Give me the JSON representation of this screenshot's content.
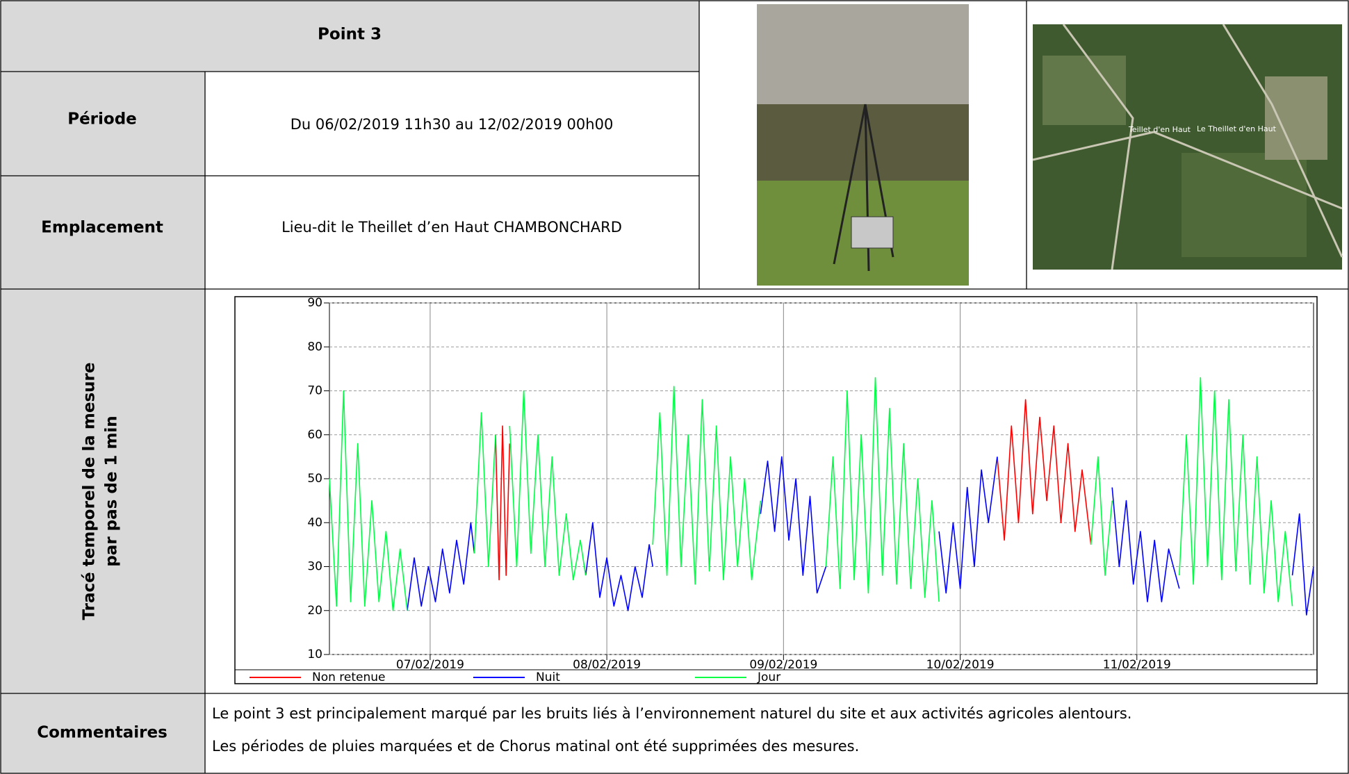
{
  "header": {
    "title": "Point 3"
  },
  "rows": [
    {
      "label": "Période",
      "value": "Du 06/02/2019 11h30 au 12/02/2019 00h00"
    },
    {
      "label": "Emplacement",
      "value": "Lieu-dit le Theillet d’en Haut CHAMBONCHARD"
    }
  ],
  "map_labels": [
    "Teillet d'en Haut",
    "Le Theillet d'en Haut"
  ],
  "chart_row_label": [
    "Tracé temporel de la mesure",
    "par pas de 1 min"
  ],
  "chart_data": {
    "type": "line",
    "xlim": [
      6.43,
      12
    ],
    "xticks": [
      {
        "value": 7,
        "label": "07/02/2019"
      },
      {
        "value": 8,
        "label": "08/02/2019"
      },
      {
        "value": 9,
        "label": "09/02/2019"
      },
      {
        "value": 10,
        "label": "10/02/2019"
      },
      {
        "value": 11,
        "label": "11/02/2019"
      }
    ],
    "ylim": [
      10,
      90
    ],
    "yticks": [
      10,
      20,
      30,
      40,
      50,
      60,
      70,
      80,
      90
    ],
    "grid": true,
    "series": [
      {
        "name": "Non retenue",
        "color": "#ff0000",
        "x": [
          7.37,
          7.39,
          7.41,
          7.43,
          7.45,
          null,
          10.21,
          10.25,
          10.29,
          10.33,
          10.37,
          10.41,
          10.45,
          10.49,
          10.53,
          10.57,
          10.61,
          10.65,
          10.69,
          10.74
        ],
        "values": [
          60,
          27,
          62,
          28,
          58,
          null,
          55,
          36,
          62,
          40,
          68,
          42,
          64,
          45,
          62,
          40,
          58,
          38,
          52,
          35
        ]
      },
      {
        "name": "Nuit",
        "color": "#0000ff",
        "x": [
          6.87,
          6.91,
          6.95,
          6.99,
          7.03,
          7.07,
          7.11,
          7.15,
          7.19,
          7.23,
          7.25,
          null,
          7.88,
          7.92,
          7.96,
          8.0,
          8.04,
          8.08,
          8.12,
          8.16,
          8.2,
          8.24,
          8.26,
          null,
          8.87,
          8.91,
          8.95,
          8.99,
          9.03,
          9.07,
          9.11,
          9.15,
          9.19,
          9.24,
          null,
          9.88,
          9.92,
          9.96,
          10.0,
          10.04,
          10.08,
          10.12,
          10.16,
          10.21,
          null,
          10.86,
          10.9,
          10.94,
          10.98,
          11.02,
          11.06,
          11.1,
          11.14,
          11.18,
          11.24,
          null,
          11.88,
          11.92,
          11.96,
          12.0
        ],
        "values": [
          20,
          32,
          21,
          30,
          22,
          34,
          24,
          36,
          26,
          40,
          33,
          null,
          28,
          40,
          23,
          32,
          21,
          28,
          20,
          30,
          23,
          35,
          30,
          null,
          42,
          54,
          38,
          55,
          36,
          50,
          28,
          46,
          24,
          30,
          null,
          38,
          24,
          40,
          25,
          48,
          30,
          52,
          40,
          55,
          null,
          48,
          30,
          45,
          26,
          38,
          22,
          36,
          22,
          34,
          25,
          null,
          28,
          42,
          19,
          30
        ]
      },
      {
        "name": "Jour",
        "color": "#00ff44",
        "x": [
          6.43,
          6.47,
          6.51,
          6.55,
          6.59,
          6.63,
          6.67,
          6.71,
          6.75,
          6.79,
          6.83,
          6.87,
          null,
          7.25,
          7.29,
          7.33,
          7.37,
          null,
          7.45,
          7.49,
          7.53,
          7.57,
          7.61,
          7.65,
          7.69,
          7.73,
          7.77,
          7.81,
          7.85,
          7.88,
          null,
          8.26,
          8.3,
          8.34,
          8.38,
          8.42,
          8.46,
          8.5,
          8.54,
          8.58,
          8.62,
          8.66,
          8.7,
          8.74,
          8.78,
          8.82,
          8.87,
          null,
          9.24,
          9.28,
          9.32,
          9.36,
          9.4,
          9.44,
          9.48,
          9.52,
          9.56,
          9.6,
          9.64,
          9.68,
          9.72,
          9.76,
          9.8,
          9.84,
          9.88,
          null,
          10.74,
          10.78,
          10.82,
          10.86,
          null,
          11.24,
          11.28,
          11.32,
          11.36,
          11.4,
          11.44,
          11.48,
          11.52,
          11.56,
          11.6,
          11.64,
          11.68,
          11.72,
          11.76,
          11.8,
          11.84,
          11.88
        ],
        "values": [
          50,
          21,
          70,
          22,
          58,
          21,
          45,
          22,
          38,
          20,
          34,
          20,
          null,
          33,
          65,
          30,
          60,
          null,
          62,
          30,
          70,
          33,
          60,
          30,
          55,
          28,
          42,
          27,
          36,
          28,
          null,
          35,
          65,
          28,
          71,
          30,
          60,
          26,
          68,
          29,
          62,
          27,
          55,
          30,
          50,
          27,
          45,
          null,
          30,
          55,
          25,
          70,
          27,
          60,
          24,
          73,
          28,
          66,
          26,
          58,
          25,
          50,
          23,
          45,
          22,
          null,
          35,
          55,
          28,
          45,
          null,
          28,
          60,
          26,
          73,
          30,
          70,
          27,
          68,
          29,
          60,
          26,
          55,
          24,
          45,
          22,
          38,
          21
        ]
      }
    ]
  },
  "comments": {
    "label": "Commentaires",
    "lines": [
      "Le point 3 est principalement marqué par les bruits liés à l’environnement naturel du site et aux activités agricoles alentours.",
      "Les périodes de pluies marquées et de Chorus matinal ont été supprimées des mesures."
    ]
  }
}
